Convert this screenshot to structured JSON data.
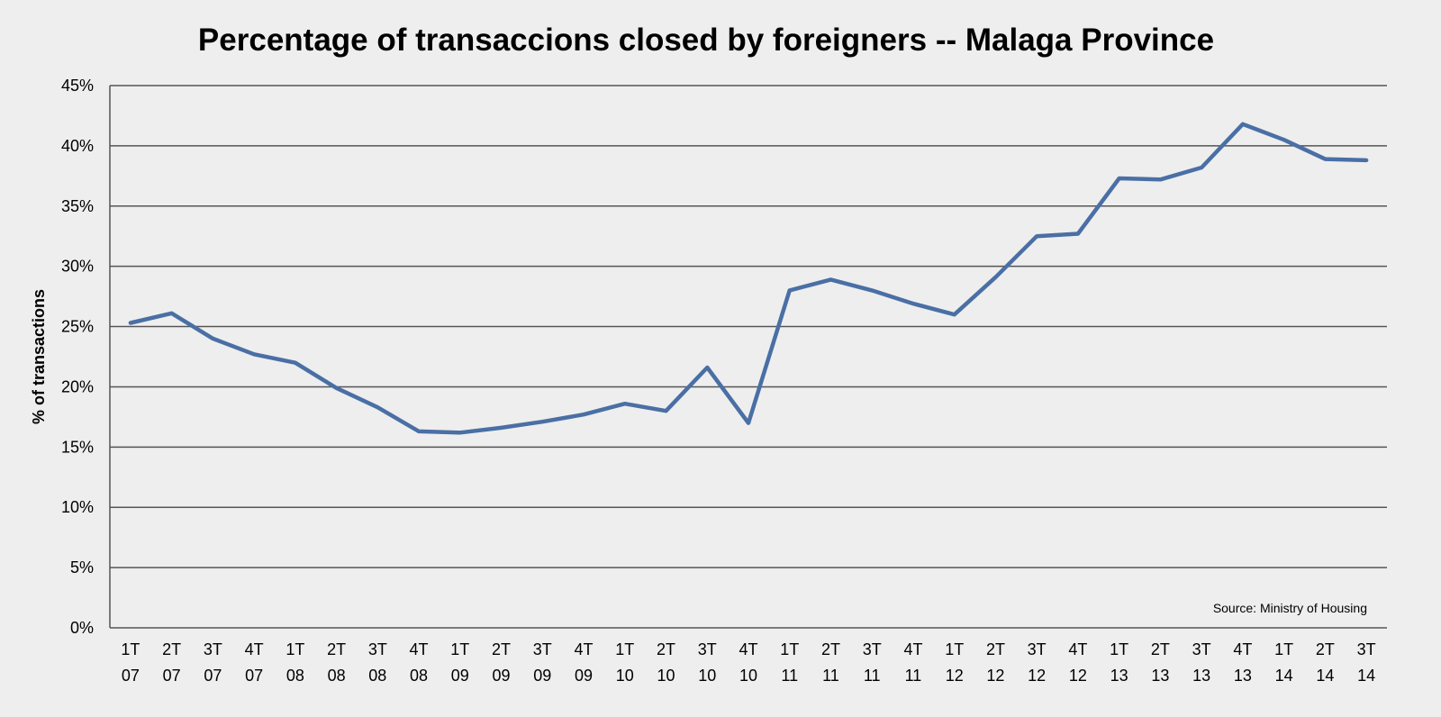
{
  "chart_data": {
    "type": "line",
    "title": "Percentage of transaccions closed by foreigners -- Malaga Province",
    "xlabel": "",
    "ylabel": "% of transactions",
    "source": "Source: Ministry of Housing",
    "ylim": [
      0,
      45
    ],
    "yticks": [
      0,
      5,
      10,
      15,
      20,
      25,
      30,
      35,
      40,
      45
    ],
    "ytick_labels": [
      "0%",
      "5%",
      "10%",
      "15%",
      "20%",
      "25%",
      "30%",
      "35%",
      "40%",
      "45%"
    ],
    "grid": true,
    "legend": "none",
    "categories": [
      [
        "1T",
        "07"
      ],
      [
        "2T",
        "07"
      ],
      [
        "3T",
        "07"
      ],
      [
        "4T",
        "07"
      ],
      [
        "1T",
        "08"
      ],
      [
        "2T",
        "08"
      ],
      [
        "3T",
        "08"
      ],
      [
        "4T",
        "08"
      ],
      [
        "1T",
        "09"
      ],
      [
        "2T",
        "09"
      ],
      [
        "3T",
        "09"
      ],
      [
        "4T",
        "09"
      ],
      [
        "1T",
        "10"
      ],
      [
        "2T",
        "10"
      ],
      [
        "3T",
        "10"
      ],
      [
        "4T",
        "10"
      ],
      [
        "1T",
        "11"
      ],
      [
        "2T",
        "11"
      ],
      [
        "3T",
        "11"
      ],
      [
        "4T",
        "11"
      ],
      [
        "1T",
        "12"
      ],
      [
        "2T",
        "12"
      ],
      [
        "3T",
        "12"
      ],
      [
        "4T",
        "12"
      ],
      [
        "1T",
        "13"
      ],
      [
        "2T",
        "13"
      ],
      [
        "3T",
        "13"
      ],
      [
        "4T",
        "13"
      ],
      [
        "1T",
        "14"
      ],
      [
        "2T",
        "14"
      ],
      [
        "3T",
        "14"
      ]
    ],
    "series": [
      {
        "color": "#4a6fa5",
        "values": [
          25.3,
          26.1,
          24.0,
          22.7,
          22.0,
          19.9,
          18.3,
          16.3,
          16.2,
          16.6,
          17.1,
          17.7,
          18.6,
          18.0,
          21.6,
          17.0,
          28.0,
          28.9,
          28.0,
          26.9,
          26.0,
          29.1,
          32.5,
          32.7,
          37.3,
          37.2,
          38.2,
          41.8,
          40.5,
          38.9,
          38.8
        ]
      }
    ],
    "colors": {
      "background": "#eeeeee",
      "gridline": "#555555",
      "line": "#4a6fa5"
    }
  }
}
